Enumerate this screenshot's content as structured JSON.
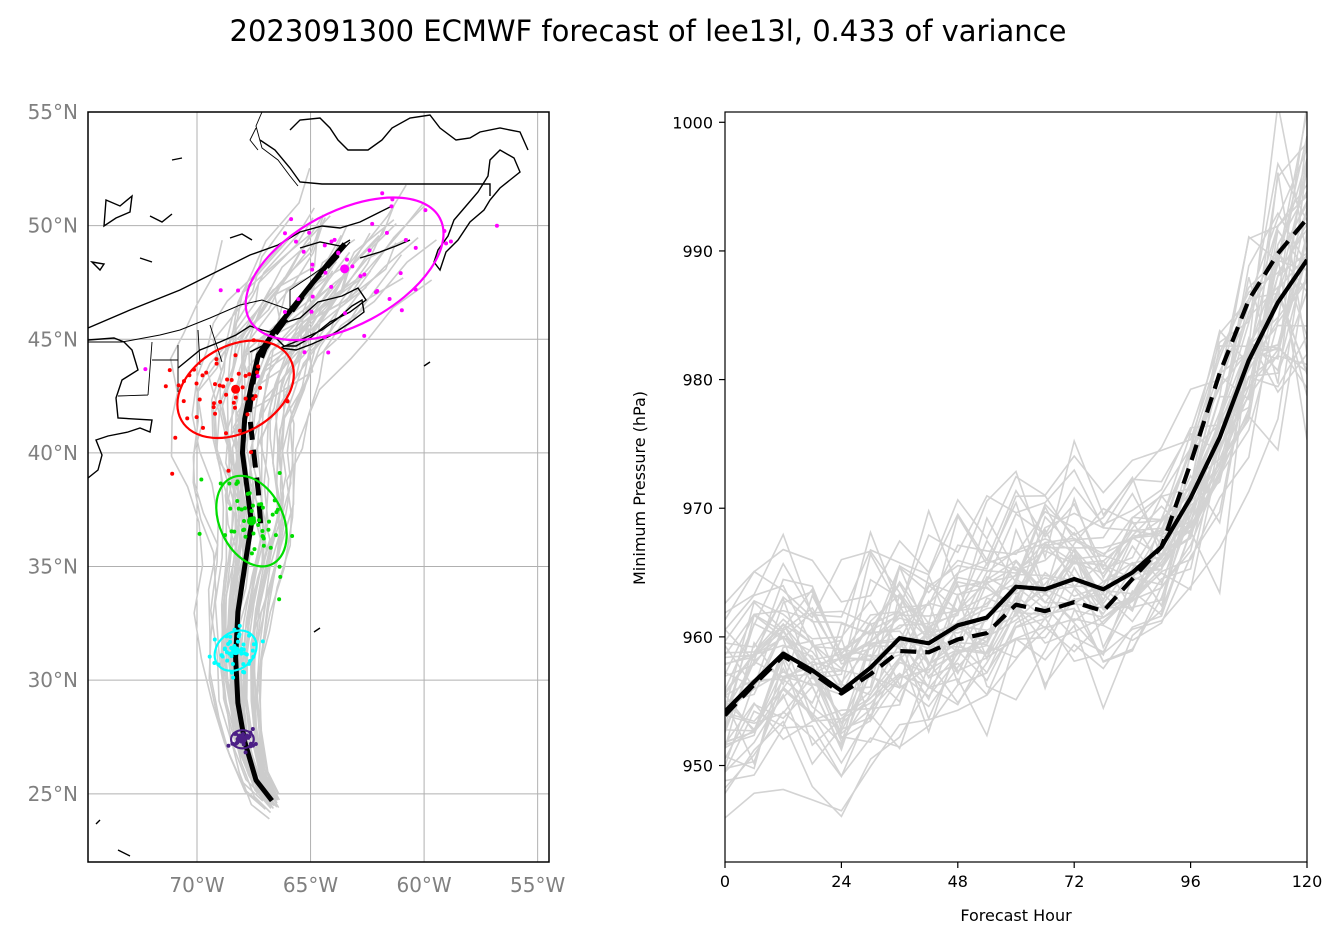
{
  "title": "2023091300 ECMWF forecast of lee13l, 0.433 of variance",
  "chart_data": [
    {
      "type": "map-track",
      "lon_range": [
        -74.8,
        -54.5
      ],
      "lat_range": [
        22,
        55
      ],
      "lon_ticks": [
        -70,
        -65,
        -60,
        -55
      ],
      "lat_ticks": [
        25,
        30,
        35,
        40,
        45,
        50,
        55
      ],
      "lon_tick_labels": [
        "70°W",
        "65°W",
        "60°W",
        "55°W"
      ],
      "lat_tick_labels": [
        "25°N",
        "30°N",
        "35°N",
        "40°N",
        "45°N",
        "50°N",
        "55°N"
      ],
      "grid": true,
      "mean_track_solid": [
        [
          -66.7,
          24.7
        ],
        [
          -67.4,
          25.6
        ],
        [
          -67.9,
          27.3
        ],
        [
          -68.2,
          29.0
        ],
        [
          -68.3,
          31.0
        ],
        [
          -68.2,
          33.0
        ],
        [
          -67.9,
          35.0
        ],
        [
          -67.6,
          36.9
        ],
        [
          -67.8,
          38.5
        ],
        [
          -68.0,
          40.0
        ],
        [
          -67.9,
          41.5
        ],
        [
          -67.6,
          43.0
        ],
        [
          -67.3,
          44.3
        ],
        [
          -66.5,
          45.5
        ],
        [
          -65.7,
          46.5
        ],
        [
          -64.5,
          48.0
        ],
        [
          -63.5,
          49.2
        ]
      ],
      "mean_track_dashed": [
        [
          -67.2,
          36.9
        ],
        [
          -67.3,
          38.3
        ],
        [
          -67.5,
          40.0
        ],
        [
          -67.7,
          41.8
        ],
        [
          -67.5,
          43.3
        ],
        [
          -67.0,
          44.6
        ],
        [
          -66.0,
          46.0
        ],
        [
          -64.9,
          47.5
        ],
        [
          -63.8,
          48.7
        ]
      ],
      "ellipses": [
        {
          "color": "#4B1E86",
          "center": [
            -68.0,
            27.4
          ],
          "width_deg": 1.0,
          "height_deg": 0.8,
          "angle_deg": 0,
          "n_members": 30
        },
        {
          "color": "#00FFFF",
          "center": [
            -68.3,
            31.3
          ],
          "width_deg": 2.0,
          "height_deg": 1.6,
          "angle_deg": 40,
          "n_members": 45
        },
        {
          "color": "#00DD00",
          "center": [
            -67.6,
            37.0
          ],
          "width_deg": 2.8,
          "height_deg": 4.2,
          "angle_deg": 25,
          "n_members": 50
        },
        {
          "color": "#FF0000",
          "center": [
            -68.3,
            42.8
          ],
          "width_deg": 5.5,
          "height_deg": 3.8,
          "angle_deg": 30,
          "n_members": 50
        },
        {
          "color": "#FF00FF",
          "center": [
            -63.5,
            48.1
          ],
          "width_deg": 9.5,
          "height_deg": 5.0,
          "angle_deg": 28,
          "n_members": 50
        }
      ],
      "ensemble_color": "#cccccc",
      "coast_color": "#000000"
    },
    {
      "type": "line",
      "xlabel": "Forecast Hour",
      "ylabel": "Minimum Pressure (hPa)",
      "xlim": [
        0,
        120
      ],
      "ylim": [
        942.5,
        1000.8
      ],
      "xticks": [
        0,
        24,
        48,
        72,
        96,
        120
      ],
      "yticks": [
        950,
        960,
        970,
        980,
        990,
        1000
      ],
      "grid": false,
      "x": [
        0,
        6,
        12,
        18,
        24,
        30,
        36,
        42,
        48,
        54,
        60,
        66,
        72,
        78,
        84,
        90,
        96,
        102,
        108,
        114,
        120
      ],
      "series": [
        {
          "style": "solid",
          "color": "#000000",
          "values": [
            954.2,
            956.5,
            958.7,
            957.4,
            955.8,
            957.6,
            959.9,
            959.5,
            960.9,
            961.5,
            963.9,
            963.7,
            964.5,
            963.7,
            965.0,
            967.0,
            970.8,
            975.5,
            981.5,
            986.0,
            989.3
          ]
        },
        {
          "style": "dashed",
          "color": "#000000",
          "values": [
            953.9,
            956.3,
            958.5,
            957.2,
            955.6,
            957.1,
            958.9,
            958.8,
            959.8,
            960.3,
            962.5,
            962.0,
            962.7,
            962.0,
            964.5,
            967.0,
            973.5,
            980.5,
            986.2,
            989.8,
            992.5
          ]
        }
      ],
      "ensemble_color": "#d3d3d3",
      "ensemble_count": 50
    }
  ]
}
